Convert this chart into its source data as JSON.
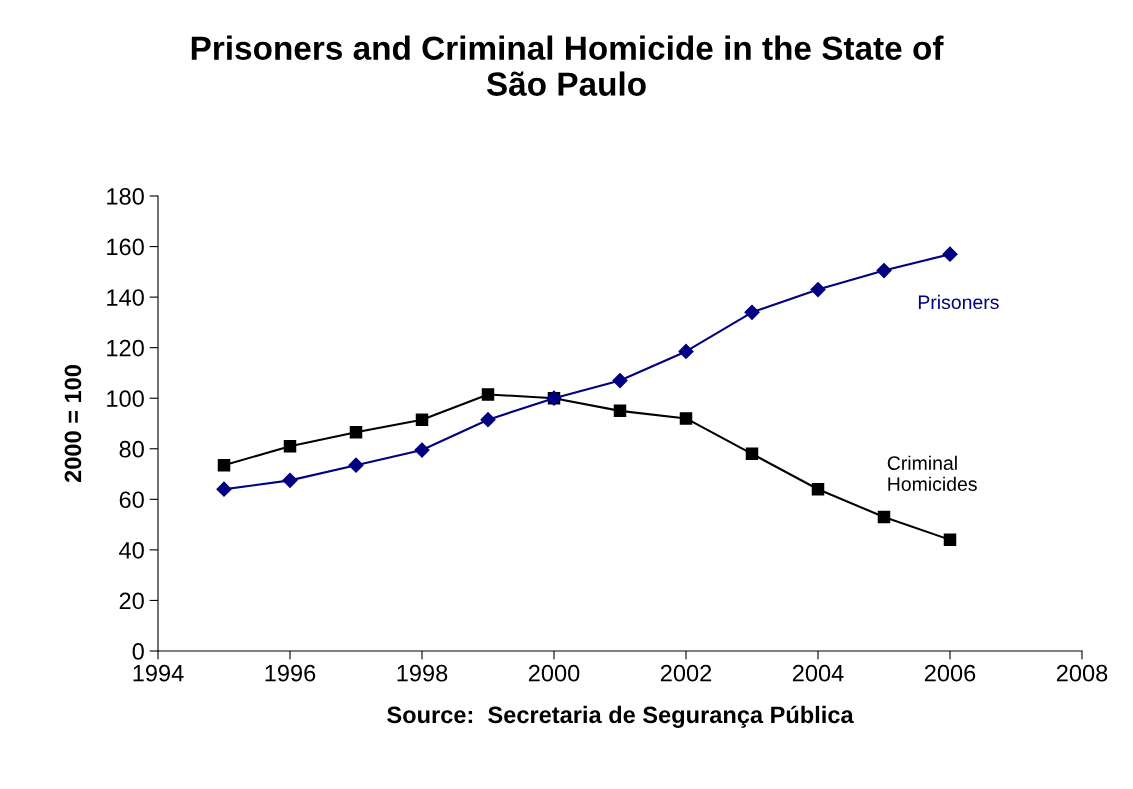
{
  "chart_data": {
    "type": "line",
    "title": "Prisoners and Criminal Homicide in the State of\nSão Paulo",
    "ylabel": "2000 = 100",
    "xlabel": "Source:  Secretaria de Segurança Pública",
    "x": [
      1995,
      1996,
      1997,
      1998,
      1999,
      2000,
      2001,
      2002,
      2003,
      2004,
      2005,
      2006
    ],
    "series": [
      {
        "name": "Prisoners",
        "color": "#000080",
        "marker": "diamond",
        "values": [
          64,
          67.5,
          73.5,
          79.5,
          91.5,
          100,
          107,
          118.5,
          134,
          143,
          150.5,
          157
        ]
      },
      {
        "name": "Criminal\nHomicides",
        "color": "#000000",
        "marker": "square",
        "values": [
          73.5,
          81,
          86.5,
          91.5,
          101.5,
          100,
          95,
          92,
          78,
          64,
          53,
          44
        ]
      }
    ],
    "xlim": [
      1994,
      2008
    ],
    "xticks": [
      1994,
      1996,
      1998,
      2000,
      2002,
      2004,
      2006,
      2008
    ],
    "ylim": [
      0,
      180
    ],
    "yticks": [
      0,
      20,
      40,
      60,
      80,
      100,
      120,
      140,
      160,
      180
    ],
    "grid": false,
    "legend": false,
    "line_style": "solid"
  }
}
